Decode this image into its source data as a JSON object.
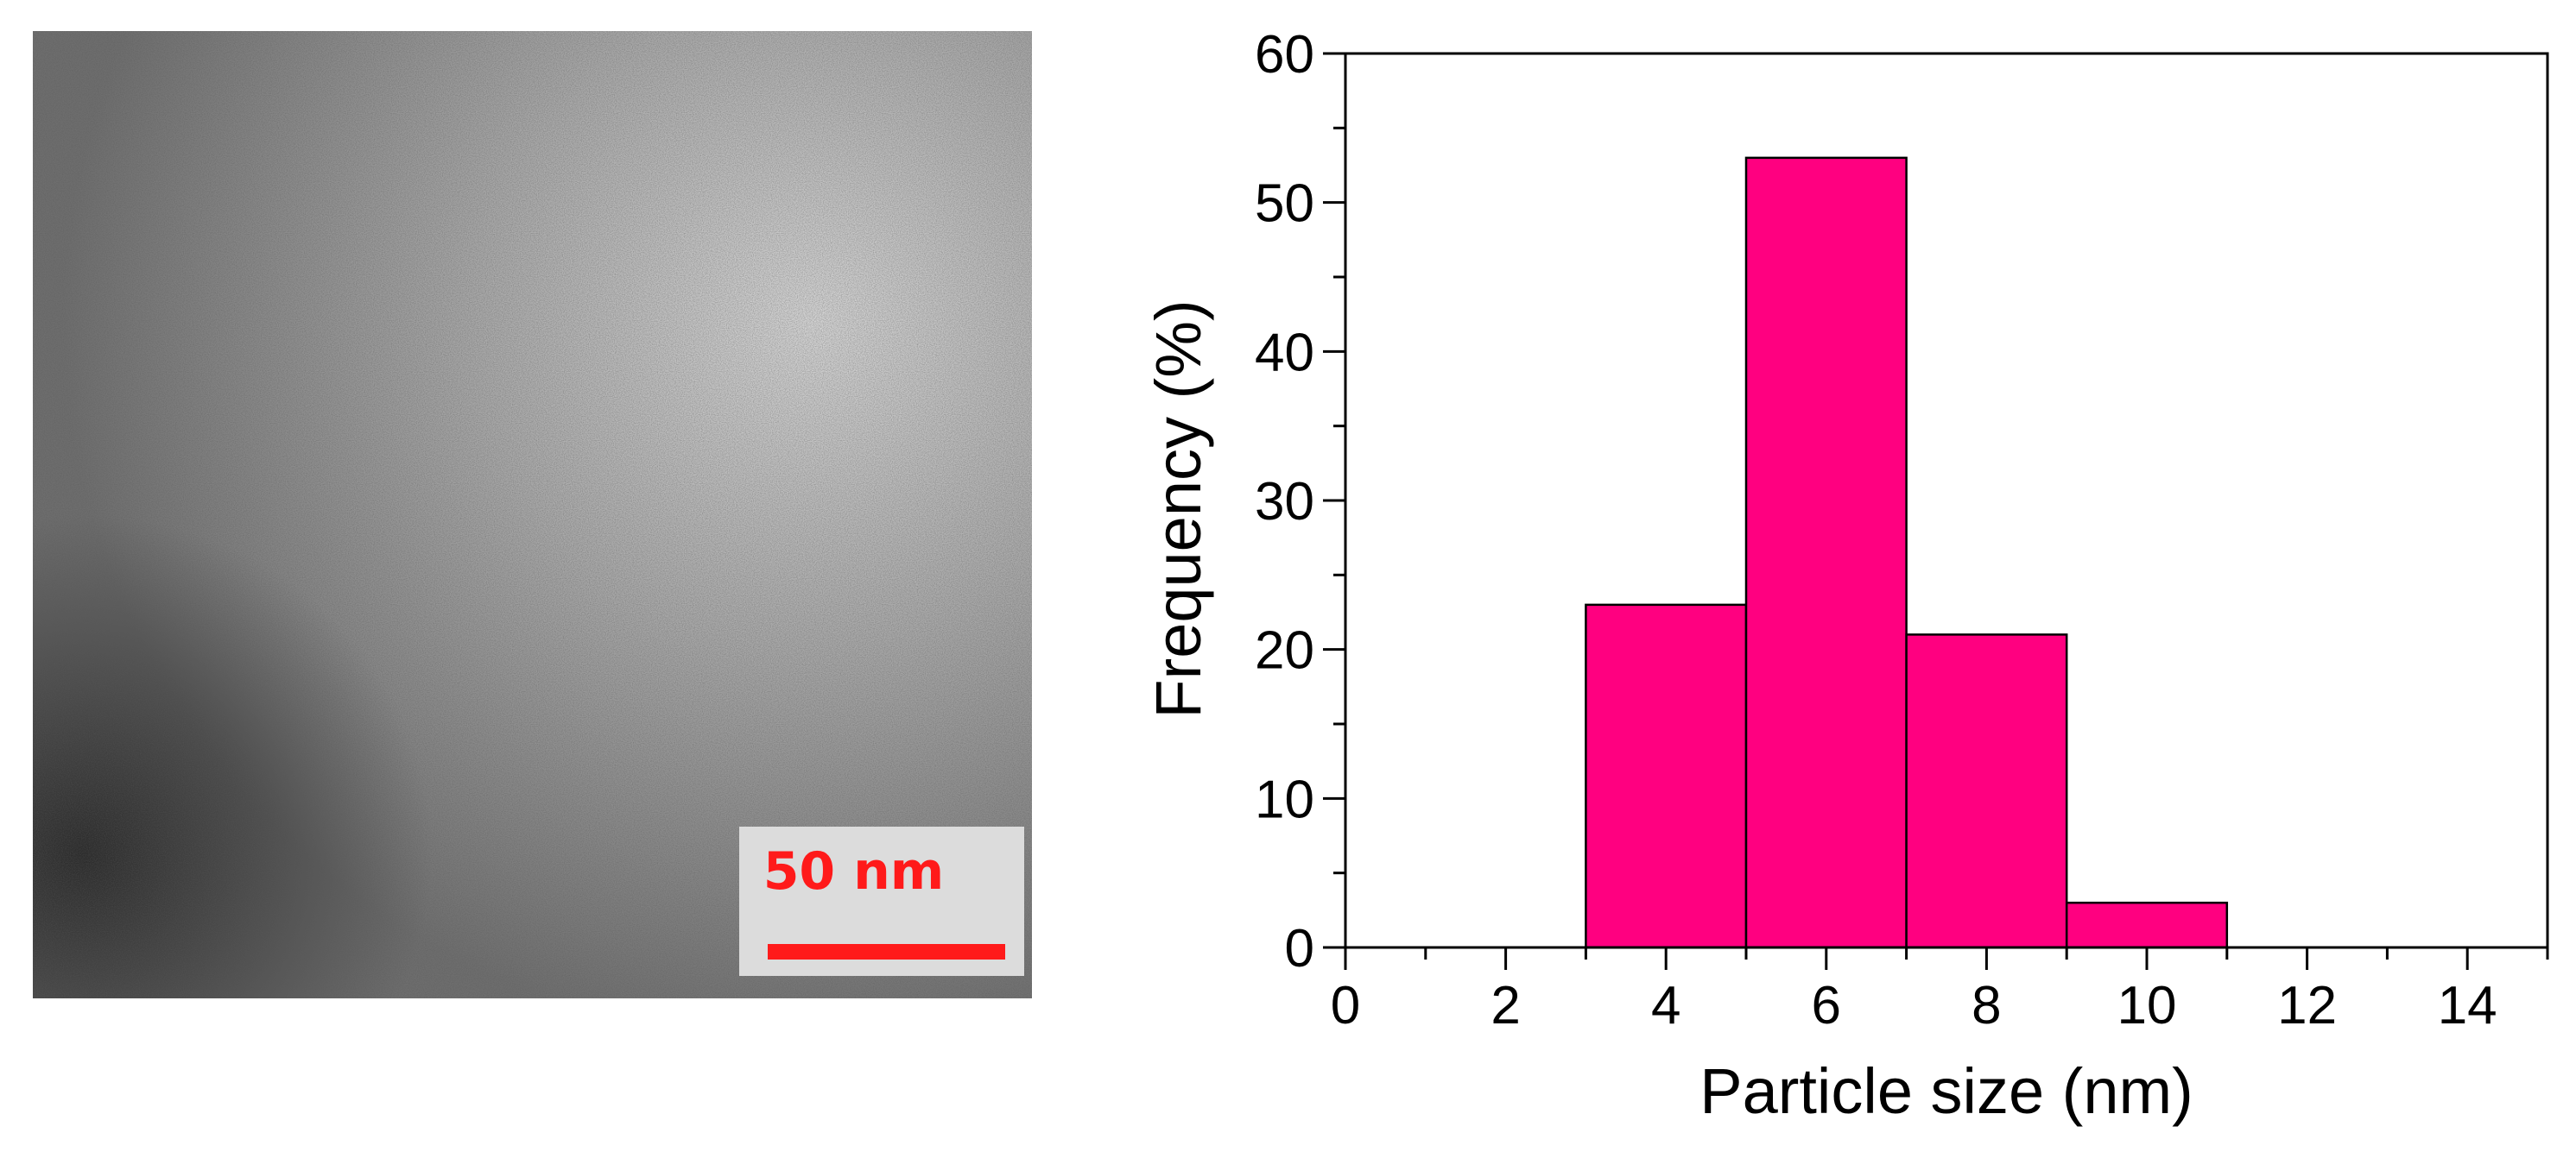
{
  "tem_image": {
    "description_icon": "tem-micrograph-icon",
    "scale_bar_label": "50 nm",
    "scale_bar_color": "#ff1a1a"
  },
  "chart_data": {
    "type": "bar",
    "title": "",
    "xlabel": "Particle size (nm)",
    "ylabel": "Frequency (%)",
    "xlim": [
      0,
      15
    ],
    "ylim": [
      0,
      60
    ],
    "x_ticks": [
      0,
      2,
      4,
      6,
      8,
      10,
      12,
      14
    ],
    "y_ticks": [
      0,
      10,
      20,
      30,
      40,
      50,
      60
    ],
    "bins": [
      {
        "start": 3,
        "end": 5,
        "value": 23
      },
      {
        "start": 5,
        "end": 7,
        "value": 53
      },
      {
        "start": 7,
        "end": 9,
        "value": 21
      },
      {
        "start": 9,
        "end": 11,
        "value": 3
      }
    ],
    "bar_color": "#ff0080",
    "grid": false
  }
}
